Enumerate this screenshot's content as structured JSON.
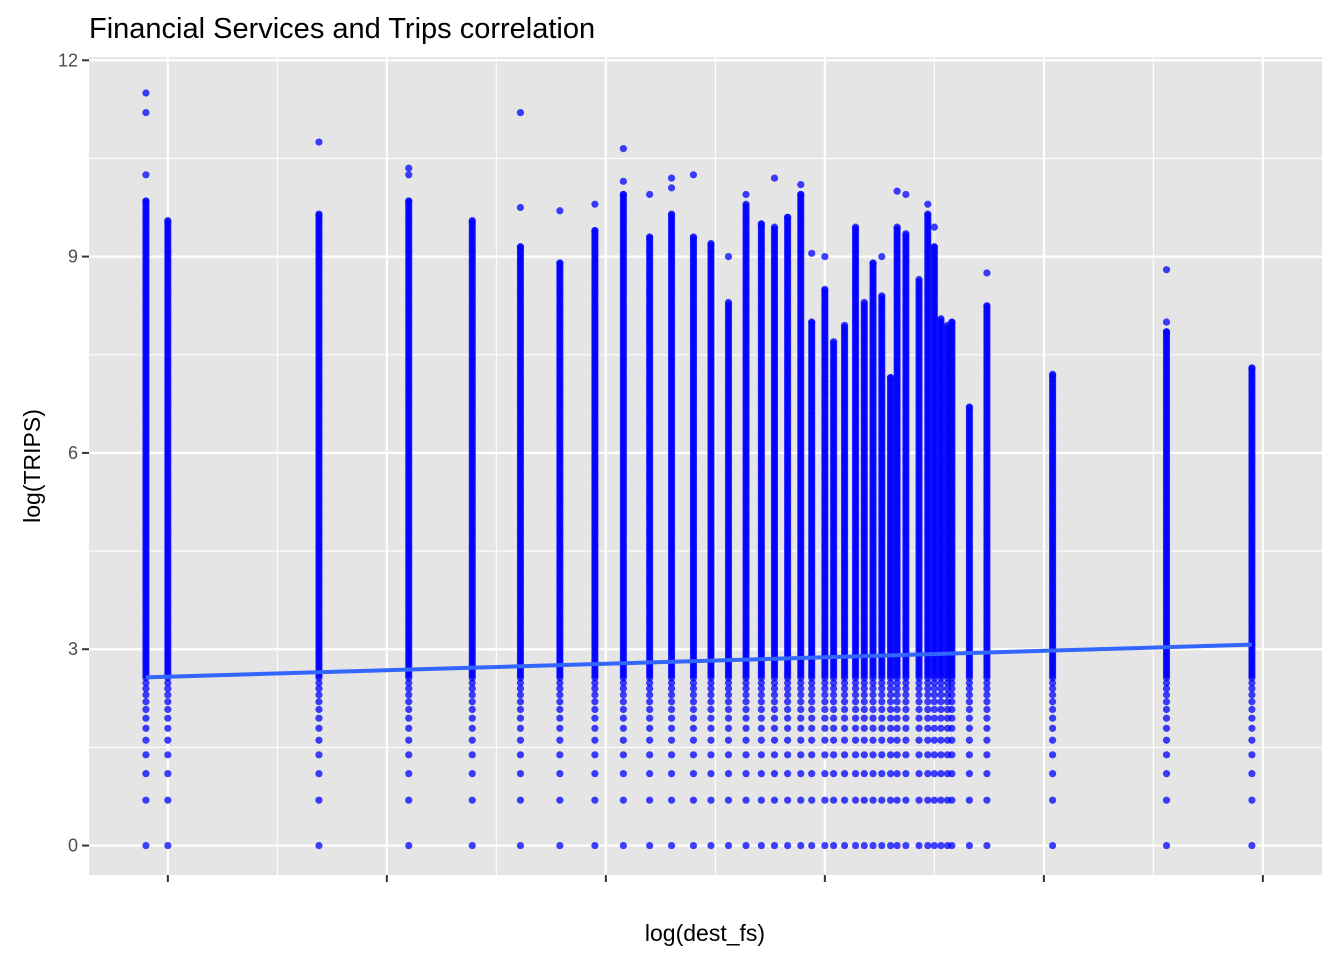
{
  "chart_data": {
    "type": "scatter",
    "title": "Financial Services and Trips correlation",
    "xlabel": "log(dest_fs)",
    "ylabel": "log(TRIPS)",
    "ylim": [
      -0.45,
      12.05
    ],
    "xlim": [
      -0.36,
      5.27
    ],
    "y_ticks": [
      0,
      3,
      6,
      9,
      12
    ],
    "y_tick_labels": [
      "0",
      "3",
      "6",
      "9",
      "12"
    ],
    "x_ticks": [
      0,
      1,
      2,
      3,
      4,
      5
    ],
    "x_tick_labels": [
      "",
      "",
      "",
      "",
      "",
      ""
    ],
    "grid": true,
    "legend": "none",
    "colors": {
      "panel": "#e5e5e5",
      "grid": "#ffffff",
      "points": "#0000ff",
      "trend_line": "#3366ff"
    },
    "point_columns": [
      {
        "x": -0.1,
        "max_y": 11.5,
        "outliers": [
          11.5,
          11.2,
          10.25,
          9.85
        ]
      },
      {
        "x": 0.0,
        "max_y": 9.55,
        "outliers": [
          9.55
        ]
      },
      {
        "x": 0.69,
        "max_y": 10.75,
        "outliers": [
          10.75,
          9.65
        ]
      },
      {
        "x": 1.1,
        "max_y": 10.35,
        "outliers": [
          10.35,
          10.25,
          9.85
        ]
      },
      {
        "x": 1.39,
        "max_y": 9.55,
        "outliers": [
          9.55
        ]
      },
      {
        "x": 1.61,
        "max_y": 11.2,
        "outliers": [
          11.2,
          9.75,
          9.15
        ]
      },
      {
        "x": 1.79,
        "max_y": 9.7,
        "outliers": [
          9.7,
          8.9
        ]
      },
      {
        "x": 1.95,
        "max_y": 9.8,
        "outliers": [
          9.8,
          9.4
        ]
      },
      {
        "x": 2.08,
        "max_y": 10.65,
        "outliers": [
          10.65,
          10.15,
          9.95
        ]
      },
      {
        "x": 2.2,
        "max_y": 9.95,
        "outliers": [
          9.95,
          9.3
        ]
      },
      {
        "x": 2.3,
        "max_y": 10.2,
        "outliers": [
          10.2,
          10.05,
          9.65
        ]
      },
      {
        "x": 2.4,
        "max_y": 10.25,
        "outliers": [
          10.25,
          9.3
        ]
      },
      {
        "x": 2.48,
        "max_y": 9.2,
        "outliers": [
          9.2
        ]
      },
      {
        "x": 2.56,
        "max_y": 9.0,
        "outliers": [
          9.0,
          8.3
        ]
      },
      {
        "x": 2.64,
        "max_y": 9.95,
        "outliers": [
          9.95,
          9.8
        ]
      },
      {
        "x": 2.71,
        "max_y": 9.5,
        "outliers": [
          9.5
        ]
      },
      {
        "x": 2.77,
        "max_y": 10.2,
        "outliers": [
          10.2,
          9.45
        ]
      },
      {
        "x": 2.83,
        "max_y": 9.6,
        "outliers": [
          9.6
        ]
      },
      {
        "x": 2.89,
        "max_y": 10.1,
        "outliers": [
          10.1,
          9.95
        ]
      },
      {
        "x": 2.94,
        "max_y": 9.05,
        "outliers": [
          9.05,
          8.0
        ]
      },
      {
        "x": 3.0,
        "max_y": 9.0,
        "outliers": [
          9.0,
          8.5
        ]
      },
      {
        "x": 3.04,
        "max_y": 7.7,
        "outliers": [
          7.7
        ]
      },
      {
        "x": 3.09,
        "max_y": 7.95,
        "outliers": [
          7.95
        ]
      },
      {
        "x": 3.14,
        "max_y": 9.45,
        "outliers": [
          9.45
        ]
      },
      {
        "x": 3.18,
        "max_y": 8.3,
        "outliers": [
          8.3
        ]
      },
      {
        "x": 3.22,
        "max_y": 8.9,
        "outliers": [
          8.9
        ]
      },
      {
        "x": 3.26,
        "max_y": 9.0,
        "outliers": [
          9.0,
          8.4
        ]
      },
      {
        "x": 3.3,
        "max_y": 7.15,
        "outliers": [
          7.15
        ]
      },
      {
        "x": 3.33,
        "max_y": 10.0,
        "outliers": [
          10.0,
          9.45
        ]
      },
      {
        "x": 3.37,
        "max_y": 9.95,
        "outliers": [
          9.95,
          9.35
        ]
      },
      {
        "x": 3.43,
        "max_y": 8.65,
        "outliers": [
          8.65
        ]
      },
      {
        "x": 3.47,
        "max_y": 9.8,
        "outliers": [
          9.8,
          9.65
        ]
      },
      {
        "x": 3.5,
        "max_y": 9.45,
        "outliers": [
          9.45,
          9.15
        ]
      },
      {
        "x": 3.53,
        "max_y": 8.05,
        "outliers": [
          8.05
        ]
      },
      {
        "x": 3.56,
        "max_y": 7.95,
        "outliers": [
          7.95
        ]
      },
      {
        "x": 3.58,
        "max_y": 8.0,
        "outliers": [
          8.0
        ]
      },
      {
        "x": 3.66,
        "max_y": 6.7,
        "outliers": [
          6.7
        ]
      },
      {
        "x": 3.74,
        "max_y": 8.75,
        "outliers": [
          8.75,
          8.25
        ]
      },
      {
        "x": 4.04,
        "max_y": 7.2,
        "outliers": [
          7.2
        ]
      },
      {
        "x": 4.56,
        "max_y": 8.8,
        "outliers": [
          8.8,
          8.0,
          7.85
        ]
      },
      {
        "x": 4.95,
        "max_y": 7.3,
        "outliers": [
          7.3
        ]
      }
    ],
    "trend_line": {
      "x": [
        -0.1,
        4.95
      ],
      "y": [
        2.57,
        3.07
      ],
      "method": "lm"
    }
  }
}
